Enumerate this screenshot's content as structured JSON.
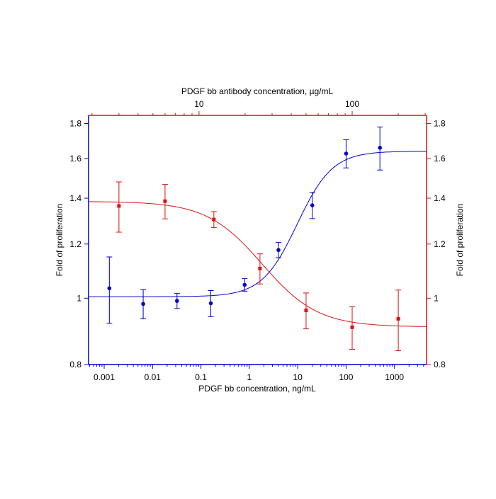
{
  "chart_data": {
    "type": "scatter",
    "xlabel": "PDGF bb concentration, ng/mL",
    "x2label": "PDGF bb antibody concentration, µg/mL",
    "ylabel": "Fold of proliferation",
    "y2label": "Fold of proliferation",
    "xscale": "log",
    "yscale": "log",
    "xlim": [
      0.000476,
      4600
    ],
    "xticks": [
      0.001,
      0.01,
      0.1,
      1,
      10,
      100,
      1000
    ],
    "x2lim": [
      1.9,
      306
    ],
    "x2ticks": [
      10,
      100
    ],
    "ylim": [
      0.8,
      1.85
    ],
    "yticks": [
      0.8,
      1,
      1.2,
      1.4,
      1.6,
      1.8
    ],
    "y2lim": [
      0.8,
      1.85
    ],
    "y2ticks": [
      0.8,
      1,
      1.2,
      1.4,
      1.6,
      1.8
    ],
    "series": [
      {
        "color": "#0000cc",
        "x": [
          0.00128,
          0.0064,
          0.032,
          0.16,
          0.8,
          4,
          20,
          100,
          500
        ],
        "values": [
          1.034,
          0.981,
          0.991,
          0.983,
          1.046,
          1.176,
          1.367,
          1.627,
          1.659
        ],
        "errors": [
          0.115,
          0.048,
          0.025,
          0.043,
          0.022,
          0.03,
          0.06,
          0.077,
          0.12
        ],
        "fit": {
          "bottom": 1.005,
          "top": 1.64,
          "ec50": 12,
          "hill": 1.2
        }
      },
      {
        "color": "#dd1111",
        "axis": "x2",
        "x": [
          3,
          6,
          12.5,
          25,
          50,
          100,
          200
        ],
        "values": [
          1.364,
          1.386,
          1.303,
          1.105,
          0.96,
          0.907,
          0.933
        ],
        "errors": [
          0.115,
          0.08,
          0.035,
          0.056,
          0.058,
          0.065,
          0.095
        ],
        "fit": {
          "bottom": 0.908,
          "top": 1.385,
          "ec50": 23.7,
          "hill": -2.4
        }
      }
    ]
  }
}
